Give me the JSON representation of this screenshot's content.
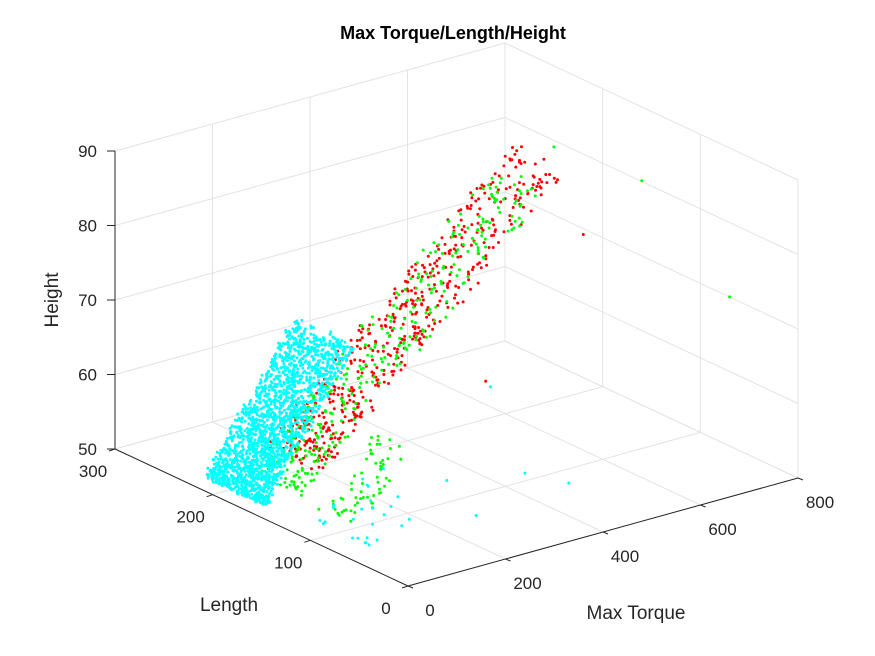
{
  "chart_data": {
    "type": "scatter3d",
    "title": "Max Torque/Length/Height",
    "xlabel": "Max Torque",
    "ylabel": "Length",
    "zlabel": "Height",
    "xlim": [
      0,
      800
    ],
    "ylim": [
      0,
      300
    ],
    "zlim": [
      50,
      90
    ],
    "xticks": [
      "0",
      "200",
      "400",
      "600",
      "800"
    ],
    "yticks": [
      "0",
      "100",
      "200",
      "300"
    ],
    "zticks": [
      "50",
      "60",
      "70",
      "80",
      "90"
    ],
    "grid": true,
    "series": [
      {
        "color": "#ff0000",
        "clusters": [
          {
            "n": 520,
            "x": [
              150,
              650
            ],
            "y": [
              160,
              215
            ],
            "z": [
              53,
              84
            ]
          }
        ],
        "points": [
          [
            640,
            140,
            77
          ],
          [
            500,
            170,
            58
          ],
          [
            620,
            190,
            84
          ]
        ]
      },
      {
        "color": "#00ff00",
        "clusters": [
          {
            "n": 330,
            "x": [
              120,
              620
            ],
            "y": [
              165,
              215
            ],
            "z": [
              50,
              82
            ]
          },
          {
            "n": 60,
            "x": [
              100,
              220
            ],
            "y": [
              100,
              140
            ],
            "z": [
              50,
              58
            ]
          }
        ],
        "points": [
          [
            780,
            60,
            71
          ],
          [
            720,
            120,
            84
          ],
          [
            700,
            200,
            84
          ]
        ]
      },
      {
        "color": "#00ffff",
        "clusters": [
          {
            "n": 1900,
            "x": [
              40,
              220
            ],
            "y": [
              165,
              225
            ],
            "z": [
              50,
              68
            ]
          },
          {
            "n": 25,
            "x": [
              60,
              180
            ],
            "y": [
              60,
              130
            ],
            "z": [
              50,
              54
            ]
          }
        ],
        "points": [
          [
            450,
            140,
            60
          ],
          [
            320,
            120,
            51
          ],
          [
            200,
            30,
            54
          ],
          [
            400,
            80,
            53
          ],
          [
            230,
            140,
            53
          ],
          [
            450,
            60,
            52
          ]
        ]
      }
    ]
  }
}
